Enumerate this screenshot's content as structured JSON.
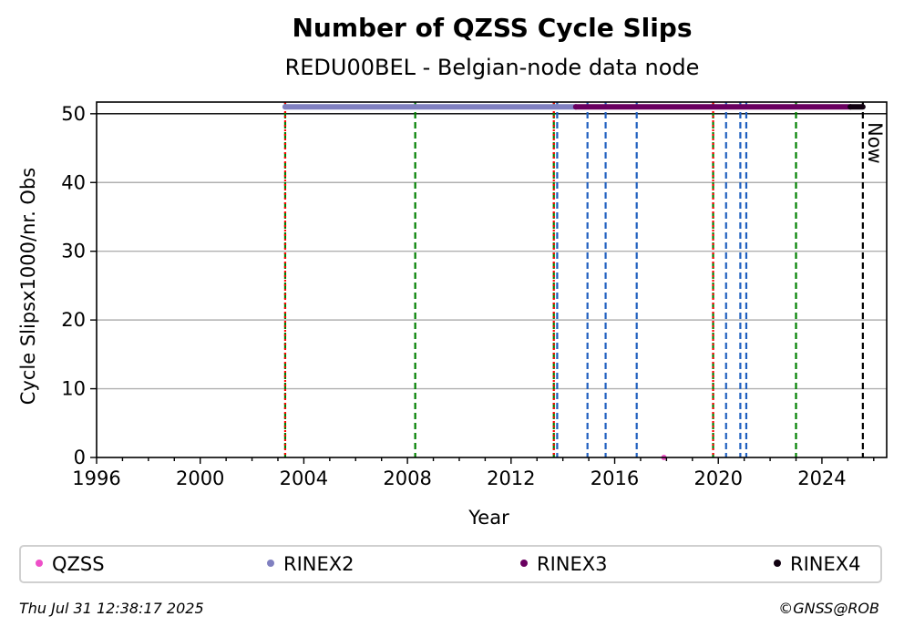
{
  "chart_data": {
    "type": "scatter",
    "title": "Number of QZSS Cycle Slips",
    "subtitle": "REDU00BEL - Belgian-node data node",
    "xlabel": "Year",
    "ylabel": "Cycle Slipsx1000/nr. Obs",
    "xlim": [
      1996,
      2026.5
    ],
    "ylim": [
      0,
      51.7
    ],
    "x_ticks": [
      1996,
      2000,
      2004,
      2008,
      2012,
      2016,
      2020,
      2024
    ],
    "y_ticks": [
      0,
      10,
      20,
      30,
      40,
      50
    ],
    "grid": "horizontal",
    "reference_line_y": 50,
    "now_marker": {
      "x": 2025.58,
      "label": "Now"
    },
    "event_lines": [
      {
        "x": 2003.28,
        "color": "#008000",
        "style": "dashed"
      },
      {
        "x": 2003.28,
        "color": "#ff0000",
        "style": "dotted"
      },
      {
        "x": 2008.3,
        "color": "#008000",
        "style": "dashed"
      },
      {
        "x": 2013.65,
        "color": "#008000",
        "style": "dashed"
      },
      {
        "x": 2013.65,
        "color": "#ff0000",
        "style": "dotted"
      },
      {
        "x": 2013.78,
        "color": "#1f5fbf",
        "style": "dashed"
      },
      {
        "x": 2014.95,
        "color": "#1f5fbf",
        "style": "dashed"
      },
      {
        "x": 2015.65,
        "color": "#1f5fbf",
        "style": "dashed"
      },
      {
        "x": 2016.85,
        "color": "#1f5fbf",
        "style": "dashed"
      },
      {
        "x": 2019.8,
        "color": "#008000",
        "style": "dashed"
      },
      {
        "x": 2019.8,
        "color": "#ff0000",
        "style": "dotted"
      },
      {
        "x": 2020.3,
        "color": "#1f5fbf",
        "style": "dashed"
      },
      {
        "x": 2020.85,
        "color": "#1f5fbf",
        "style": "dashed"
      },
      {
        "x": 2021.08,
        "color": "#1f5fbf",
        "style": "dashed"
      },
      {
        "x": 2023.0,
        "color": "#008000",
        "style": "dashed"
      }
    ],
    "series": [
      {
        "name": "QZSS",
        "color": "#ee4fc8",
        "kind": "points",
        "points": [
          [
            2017.9,
            0
          ]
        ]
      },
      {
        "name": "RINEX2",
        "color": "#8080c0",
        "kind": "band",
        "x_range": [
          2003.28,
          2014.5
        ],
        "y": 51
      },
      {
        "name": "RINEX3",
        "color": "#6a0060",
        "kind": "band",
        "x_range": [
          2014.5,
          2025.1
        ],
        "y": 51
      },
      {
        "name": "RINEX4",
        "color": "#100010",
        "kind": "band",
        "x_range": [
          2025.1,
          2025.58
        ],
        "y": 51
      }
    ],
    "legend_placement": "bottom"
  },
  "footer": {
    "date": "Thu Jul 31 12:38:17 2025",
    "credit": "©GNSS@ROB"
  }
}
